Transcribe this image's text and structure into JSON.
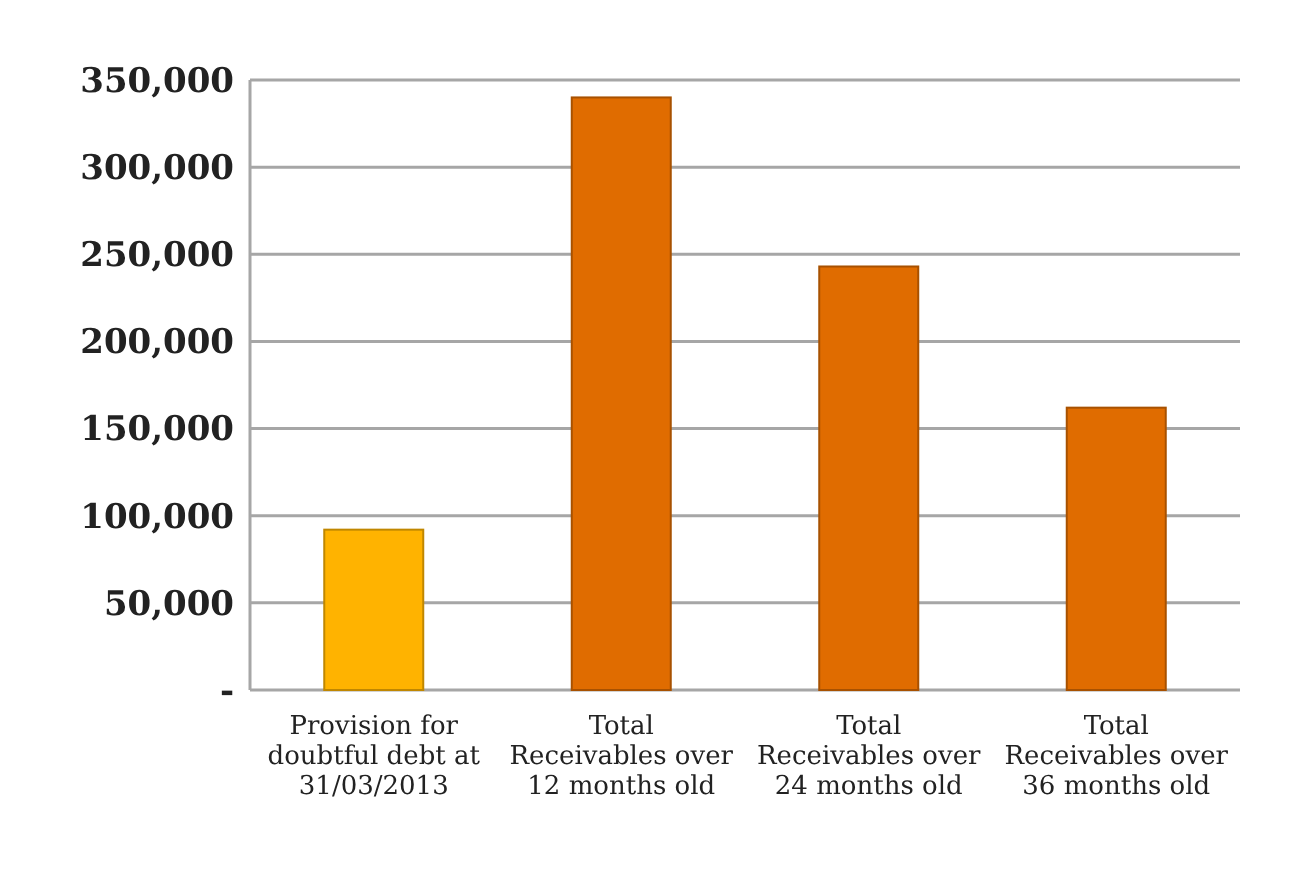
{
  "chart_data": {
    "type": "bar",
    "categories": [
      "Provision for doubtful debt at 31/03/2013",
      "Total Receivables over 12 months old",
      "Total Receivables over 24 months old",
      "Total Receivables over 36 months old"
    ],
    "values": [
      92000,
      340000,
      243000,
      162000
    ],
    "colors": [
      "#ffb300",
      "#e06c00",
      "#e06c00",
      "#e06c00"
    ],
    "ylim": [
      0,
      350000
    ],
    "yticks": [
      {
        "value": 0,
        "label": "-"
      },
      {
        "value": 50000,
        "label": "50,000"
      },
      {
        "value": 100000,
        "label": "100,000"
      },
      {
        "value": 150000,
        "label": "150,000"
      },
      {
        "value": 200000,
        "label": "200,000"
      },
      {
        "value": 250000,
        "label": "250,000"
      },
      {
        "value": 300000,
        "label": "300,000"
      },
      {
        "value": 350000,
        "label": "350,000"
      }
    ],
    "grid": "y"
  }
}
